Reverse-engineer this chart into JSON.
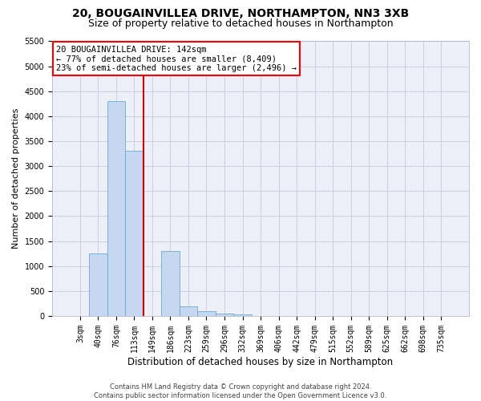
{
  "title": "20, BOUGAINVILLEA DRIVE, NORTHAMPTON, NN3 3XB",
  "subtitle": "Size of property relative to detached houses in Northampton",
  "xlabel": "Distribution of detached houses by size in Northampton",
  "ylabel": "Number of detached properties",
  "footer_line1": "Contains HM Land Registry data © Crown copyright and database right 2024.",
  "footer_line2": "Contains public sector information licensed under the Open Government Licence v3.0.",
  "annotation_line1": "20 BOUGAINVILLEA DRIVE: 142sqm",
  "annotation_line2": "← 77% of detached houses are smaller (8,409)",
  "annotation_line3": "23% of semi-detached houses are larger (2,496) →",
  "bar_color": "#c5d8ef",
  "bar_edge_color": "#6aaad4",
  "vline_color": "#cc0000",
  "categories": [
    "3sqm",
    "40sqm",
    "76sqm",
    "113sqm",
    "149sqm",
    "186sqm",
    "223sqm",
    "259sqm",
    "296sqm",
    "332sqm",
    "369sqm",
    "406sqm",
    "442sqm",
    "479sqm",
    "515sqm",
    "552sqm",
    "589sqm",
    "625sqm",
    "662sqm",
    "698sqm",
    "735sqm"
  ],
  "values": [
    0,
    1250,
    4300,
    3300,
    0,
    1300,
    200,
    100,
    50,
    25,
    0,
    0,
    0,
    0,
    0,
    0,
    0,
    0,
    0,
    0,
    0
  ],
  "vline_x_index": 4,
  "ylim": [
    0,
    5500
  ],
  "yticks": [
    0,
    500,
    1000,
    1500,
    2000,
    2500,
    3000,
    3500,
    4000,
    4500,
    5000,
    5500
  ],
  "grid_color": "#c8d0e0",
  "bg_color": "#edf0f8",
  "title_fontsize": 10,
  "subtitle_fontsize": 9,
  "annot_fontsize": 7.5,
  "tick_fontsize": 7,
  "ylabel_fontsize": 8,
  "xlabel_fontsize": 8.5,
  "footer_fontsize": 6
}
